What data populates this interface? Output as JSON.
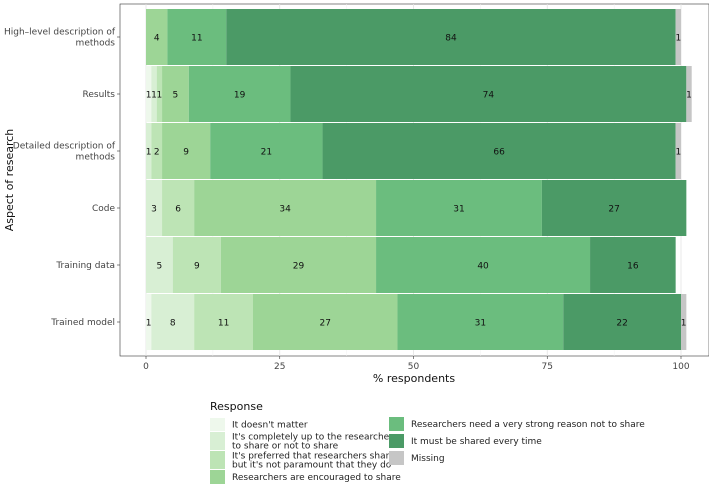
{
  "chart_data": {
    "type": "bar",
    "orientation": "horizontal-stacked",
    "categories": [
      [
        "High–level description of",
        "methods"
      ],
      [
        "Results"
      ],
      [
        "Detailed description of",
        "methods"
      ],
      [
        "Code"
      ],
      [
        "Training data"
      ],
      [
        "Trained model"
      ]
    ],
    "series": [
      {
        "name": "It doesn't matter",
        "color": "#eef8ec",
        "values": [
          0,
          1,
          0,
          0,
          0,
          1
        ]
      },
      {
        "name": "It's completely up to the researchers to share or not to share",
        "color": "#d8efd4",
        "values": [
          0,
          1,
          1,
          3,
          5,
          8
        ]
      },
      {
        "name": "It's preferred that researchers share but it's not paramount that they do",
        "color": "#bde4b5",
        "values": [
          0,
          1,
          2,
          6,
          9,
          11
        ]
      },
      {
        "name": "Researchers are encouraged to share",
        "color": "#9dd596",
        "values": [
          4,
          5,
          9,
          34,
          29,
          27
        ]
      },
      {
        "name": "Researchers need a very strong reason not to share",
        "color": "#6bbd7e",
        "values": [
          11,
          19,
          21,
          31,
          40,
          31
        ]
      },
      {
        "name": "It must be shared every time",
        "color": "#4b9a66",
        "values": [
          84,
          74,
          66,
          27,
          16,
          22
        ]
      },
      {
        "name": "Missing",
        "color": "#c6c6c6",
        "values": [
          1,
          1,
          1,
          0,
          0,
          1
        ]
      }
    ],
    "bar_labels": [
      [
        "",
        "",
        "",
        "4",
        "11",
        "84",
        "1"
      ],
      [
        "1",
        "1",
        "1",
        "5",
        "19",
        "74",
        "1"
      ],
      [
        "",
        "1",
        "2",
        "9",
        "21",
        "66",
        "1"
      ],
      [
        "",
        "3",
        "6",
        "34",
        "31",
        "27",
        ""
      ],
      [
        "",
        "5",
        "9",
        "29",
        "40",
        "16",
        ""
      ],
      [
        "1",
        "8",
        "11",
        "27",
        "31",
        "22",
        "1"
      ]
    ],
    "xlabel": "% respondents",
    "ylabel": "Aspect of research",
    "xlim": [
      0,
      100
    ],
    "xticks": [
      0,
      25,
      50,
      75,
      100
    ],
    "grid": true,
    "legend": {
      "title": "Response",
      "placement": "bottom",
      "entries": [
        [
          "It doesn't matter"
        ],
        [
          "It's completely up to the researchers",
          "to share or not to share"
        ],
        [
          "It's preferred that researchers share",
          "but it's not paramount that they do"
        ],
        [
          "Researchers are encouraged to share"
        ],
        [
          "Researchers need a very strong reason not to share"
        ],
        [
          "It must be shared every time"
        ],
        [
          "Missing"
        ]
      ]
    }
  }
}
